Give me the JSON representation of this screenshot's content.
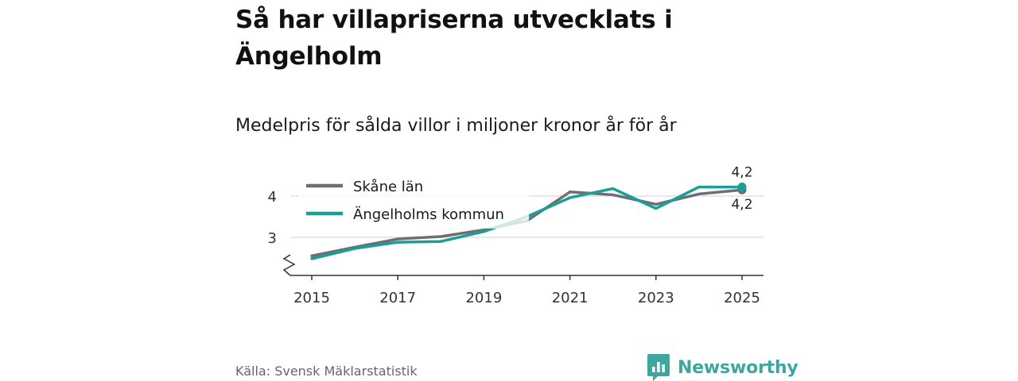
{
  "header": {
    "title": "Så har villapriserna utvecklats i Ängelholm",
    "subtitle": "Medelpris för sålda villor i miljoner kronor år för år"
  },
  "footer": {
    "source": "Källa: Svensk Mäklarstatistik",
    "brand": "Newsworthy"
  },
  "colors": {
    "skane": "#6e6e73",
    "angelholm": "#1a9e96",
    "grid": "#e0e0e0",
    "axis": "#333333",
    "brand": "#3da6a1"
  },
  "chart_data": {
    "type": "line",
    "title": "",
    "xlabel": "",
    "ylabel": "",
    "x": [
      2015,
      2016,
      2017,
      2018,
      2019,
      2020,
      2021,
      2022,
      2023,
      2024,
      2025
    ],
    "x_ticks": [
      "2015",
      "2017",
      "2019",
      "2021",
      "2023",
      "2025"
    ],
    "y_ticks": [
      "3",
      "4"
    ],
    "ylim": [
      2.1,
      4.4
    ],
    "y_axis_break": true,
    "grid": "horizontal",
    "legend_position": "top-left",
    "series": [
      {
        "name": "Skåne län",
        "color": "#6e6e73",
        "values": [
          2.55,
          2.76,
          2.96,
          3.02,
          3.18,
          3.4,
          4.1,
          4.03,
          3.8,
          4.05,
          4.15
        ],
        "end_label": "4,2"
      },
      {
        "name": "Ängelholms kommun",
        "color": "#1a9e96",
        "values": [
          2.48,
          2.73,
          2.88,
          2.9,
          3.14,
          3.5,
          3.96,
          4.18,
          3.7,
          4.22,
          4.22
        ],
        "end_label": "4,2"
      }
    ]
  }
}
